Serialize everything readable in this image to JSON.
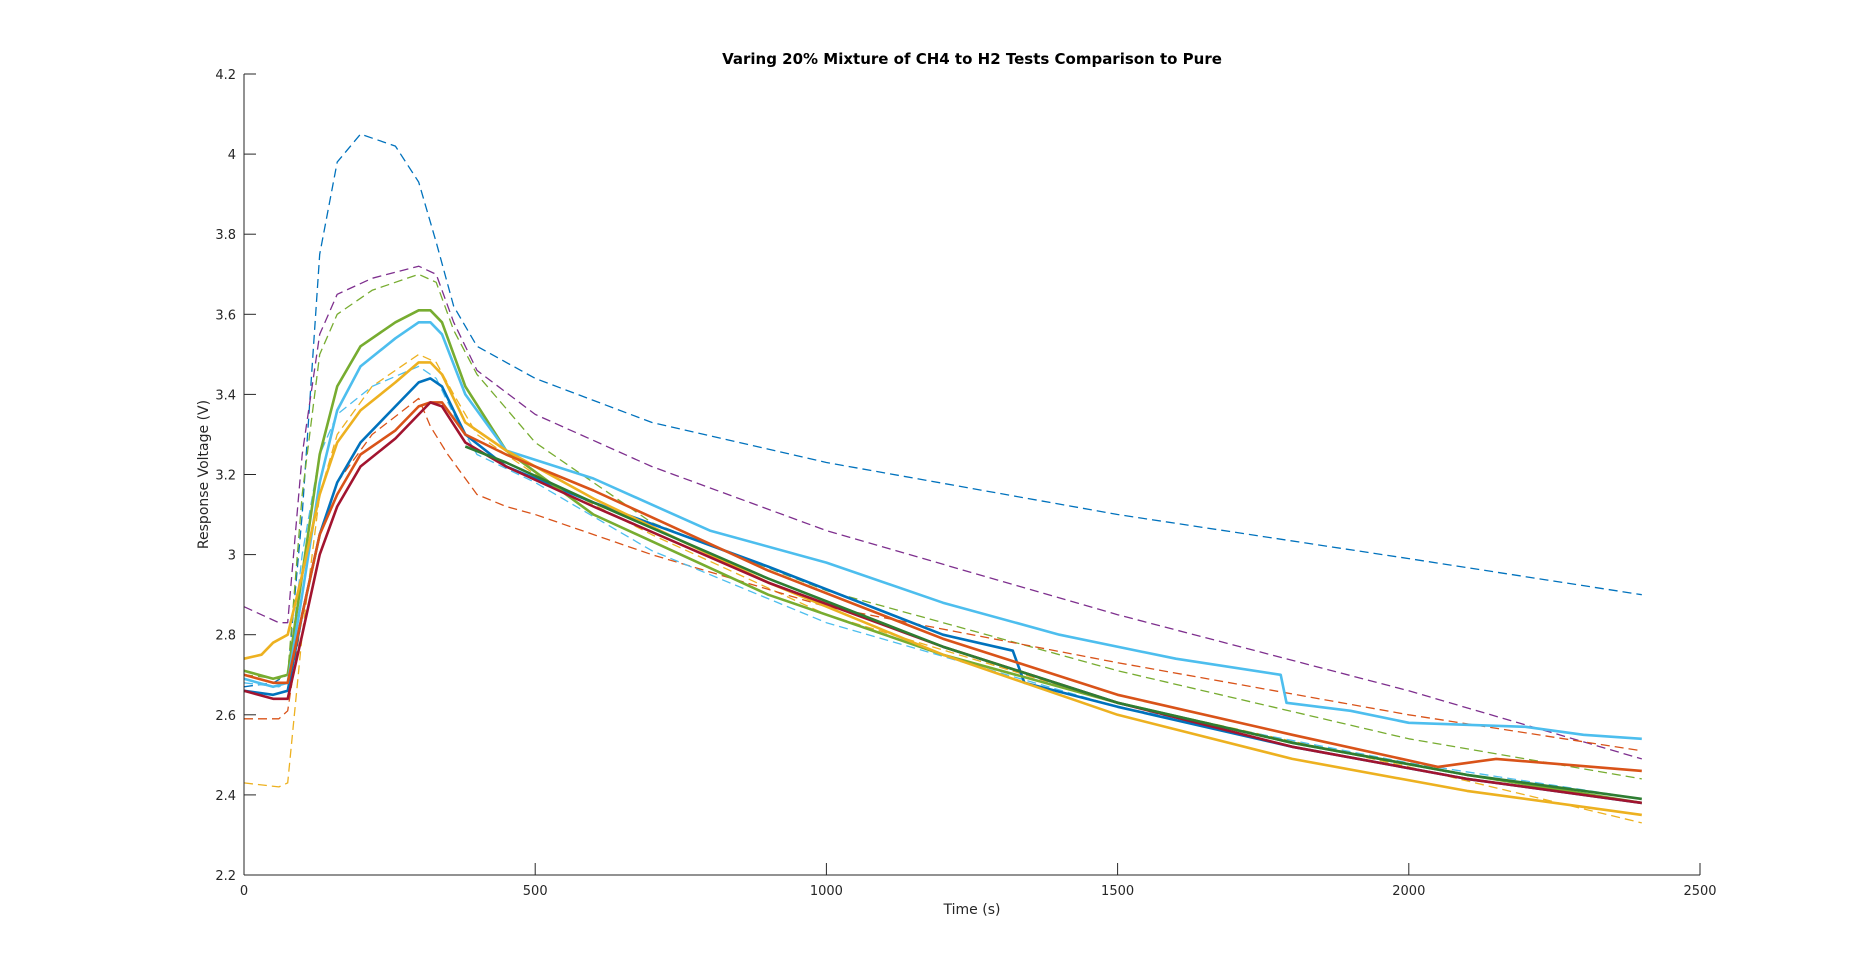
{
  "chart_data": {
    "type": "line",
    "title": "Varing 20% Mixture of CH4 to H2 Tests Comparison to Pure",
    "xlabel": "Time (s)",
    "ylabel": "Response Voltage (V)",
    "xlim": [
      0,
      2500
    ],
    "ylim": [
      2.2,
      4.2
    ],
    "xticks": [
      0,
      500,
      1000,
      1500,
      2000,
      2500
    ],
    "xtick_labels": [
      "0",
      "500",
      "1000",
      "1500",
      "2000",
      "2500"
    ],
    "yticks": [
      2.2,
      2.4,
      2.6,
      2.8,
      3.0,
      3.2,
      3.4,
      3.6,
      3.8,
      4.0,
      4.2
    ],
    "ytick_labels": [
      "2.2",
      "2.4",
      "2.6",
      "2.8",
      "3",
      "3.2",
      "3.4",
      "3.6",
      "3.8",
      "4",
      "4.2"
    ],
    "grid": false,
    "legend": "none",
    "series": [
      {
        "color": "#0072BD",
        "style": "dashed",
        "x": [
          0,
          50,
          75,
          100,
          130,
          160,
          200,
          260,
          300,
          330,
          360,
          400,
          500,
          700,
          1000,
          1500,
          2000,
          2400
        ],
        "y": [
          2.67,
          2.68,
          2.7,
          3.1,
          3.75,
          3.98,
          4.05,
          4.02,
          3.93,
          3.78,
          3.62,
          3.52,
          3.44,
          3.33,
          3.23,
          3.1,
          2.99,
          2.9
        ]
      },
      {
        "color": "#7E2F8E",
        "style": "dashed",
        "x": [
          0,
          60,
          75,
          100,
          130,
          160,
          220,
          300,
          330,
          360,
          400,
          500,
          700,
          1000,
          1500,
          2000,
          2400
        ],
        "y": [
          2.87,
          2.83,
          2.83,
          3.25,
          3.55,
          3.65,
          3.69,
          3.72,
          3.7,
          3.58,
          3.46,
          3.35,
          3.22,
          3.06,
          2.85,
          2.66,
          2.49
        ]
      },
      {
        "color": "#77AC30",
        "style": "dashed",
        "x": [
          0,
          60,
          75,
          100,
          130,
          160,
          220,
          300,
          330,
          360,
          400,
          500,
          700,
          1000,
          1500,
          2000,
          2400
        ],
        "y": [
          2.7,
          2.69,
          2.7,
          3.15,
          3.5,
          3.6,
          3.66,
          3.7,
          3.68,
          3.56,
          3.45,
          3.28,
          3.08,
          2.91,
          2.71,
          2.54,
          2.44
        ]
      },
      {
        "color": "#EDB120",
        "style": "dashed",
        "x": [
          0,
          60,
          75,
          100,
          130,
          160,
          220,
          300,
          330,
          360,
          400,
          500,
          700,
          1000,
          1500,
          2000,
          2400
        ],
        "y": [
          2.43,
          2.42,
          2.43,
          2.8,
          3.15,
          3.3,
          3.42,
          3.5,
          3.48,
          3.4,
          3.3,
          3.2,
          3.05,
          2.85,
          2.63,
          2.47,
          2.33
        ]
      },
      {
        "color": "#D95319",
        "style": "dashed",
        "x": [
          0,
          60,
          75,
          100,
          130,
          160,
          220,
          300,
          320,
          350,
          400,
          450,
          500,
          700,
          1000,
          1500,
          2000,
          2400
        ],
        "y": [
          2.59,
          2.59,
          2.61,
          2.85,
          3.05,
          3.18,
          3.3,
          3.39,
          3.32,
          3.25,
          3.15,
          3.12,
          3.1,
          3.0,
          2.87,
          2.73,
          2.6,
          2.51
        ]
      },
      {
        "color": "#4DBEEE",
        "style": "dashed",
        "x": [
          0,
          60,
          75,
          100,
          130,
          160,
          220,
          300,
          330,
          360,
          400,
          500,
          700,
          1000,
          1500,
          2000,
          2400
        ],
        "y": [
          2.68,
          2.67,
          2.68,
          3.0,
          3.25,
          3.35,
          3.42,
          3.47,
          3.44,
          3.35,
          3.25,
          3.18,
          3.01,
          2.83,
          2.62,
          2.48,
          2.39
        ]
      },
      {
        "color": "#0072BD",
        "style": "solid",
        "x": [
          0,
          50,
          75,
          100,
          130,
          160,
          200,
          260,
          300,
          320,
          340,
          380,
          450,
          600,
          900,
          1200,
          1320,
          1340,
          1500,
          1800,
          2100,
          2400
        ],
        "y": [
          2.66,
          2.65,
          2.66,
          2.85,
          3.05,
          3.18,
          3.28,
          3.37,
          3.43,
          3.44,
          3.42,
          3.3,
          3.22,
          3.13,
          2.97,
          2.8,
          2.76,
          2.68,
          2.62,
          2.52,
          2.44,
          2.38
        ]
      },
      {
        "color": "#77AC30",
        "style": "solid",
        "x": [
          0,
          50,
          75,
          100,
          130,
          160,
          200,
          260,
          300,
          320,
          340,
          380,
          450,
          600,
          900,
          1200,
          1500,
          1800,
          2100,
          2400
        ],
        "y": [
          2.71,
          2.69,
          2.7,
          2.95,
          3.25,
          3.42,
          3.52,
          3.58,
          3.61,
          3.61,
          3.58,
          3.42,
          3.26,
          3.1,
          2.9,
          2.75,
          2.63,
          2.53,
          2.45,
          2.38
        ]
      },
      {
        "color": "#4DBEEE",
        "style": "solid",
        "x": [
          0,
          50,
          75,
          100,
          130,
          160,
          200,
          260,
          300,
          320,
          340,
          380,
          450,
          600,
          800,
          1000,
          1200,
          1400,
          1600,
          1780,
          1790,
          1900,
          2000,
          2200,
          2300,
          2400
        ],
        "y": [
          2.69,
          2.67,
          2.68,
          2.9,
          3.18,
          3.36,
          3.47,
          3.54,
          3.58,
          3.58,
          3.55,
          3.4,
          3.26,
          3.19,
          3.06,
          2.98,
          2.88,
          2.8,
          2.74,
          2.7,
          2.63,
          2.61,
          2.58,
          2.57,
          2.55,
          2.54
        ]
      },
      {
        "color": "#EDB120",
        "style": "solid",
        "x": [
          0,
          30,
          50,
          75,
          100,
          130,
          160,
          200,
          260,
          300,
          320,
          340,
          380,
          450,
          600,
          900,
          1200,
          1500,
          1800,
          2100,
          2400
        ],
        "y": [
          2.74,
          2.75,
          2.78,
          2.8,
          2.95,
          3.15,
          3.28,
          3.36,
          3.43,
          3.48,
          3.48,
          3.45,
          3.33,
          3.26,
          3.14,
          2.93,
          2.75,
          2.6,
          2.49,
          2.41,
          2.35
        ]
      },
      {
        "color": "#D95319",
        "style": "solid",
        "x": [
          0,
          50,
          75,
          100,
          130,
          160,
          200,
          260,
          300,
          320,
          340,
          380,
          450,
          600,
          900,
          1200,
          1500,
          1800,
          2050,
          2100,
          2150,
          2400
        ],
        "y": [
          2.7,
          2.68,
          2.68,
          2.85,
          3.05,
          3.15,
          3.25,
          3.31,
          3.37,
          3.38,
          3.38,
          3.3,
          3.25,
          3.16,
          2.96,
          2.79,
          2.65,
          2.55,
          2.47,
          2.48,
          2.49,
          2.46
        ]
      },
      {
        "color": "#A2142F",
        "style": "solid",
        "x": [
          0,
          50,
          75,
          100,
          130,
          160,
          200,
          260,
          300,
          320,
          340,
          380,
          450,
          600,
          900,
          1200,
          1500,
          1800,
          2100,
          2400
        ],
        "y": [
          2.66,
          2.64,
          2.64,
          2.8,
          3.0,
          3.12,
          3.22,
          3.29,
          3.35,
          3.38,
          3.37,
          3.28,
          3.22,
          3.12,
          2.93,
          2.77,
          2.63,
          2.52,
          2.44,
          2.38
        ]
      },
      {
        "color": "#2E7D32",
        "style": "solid",
        "x": [
          380,
          450,
          600,
          900,
          1200,
          1500,
          1800,
          2100,
          2400
        ],
        "y": [
          3.27,
          3.23,
          3.13,
          2.94,
          2.77,
          2.63,
          2.53,
          2.45,
          2.39
        ]
      }
    ]
  }
}
